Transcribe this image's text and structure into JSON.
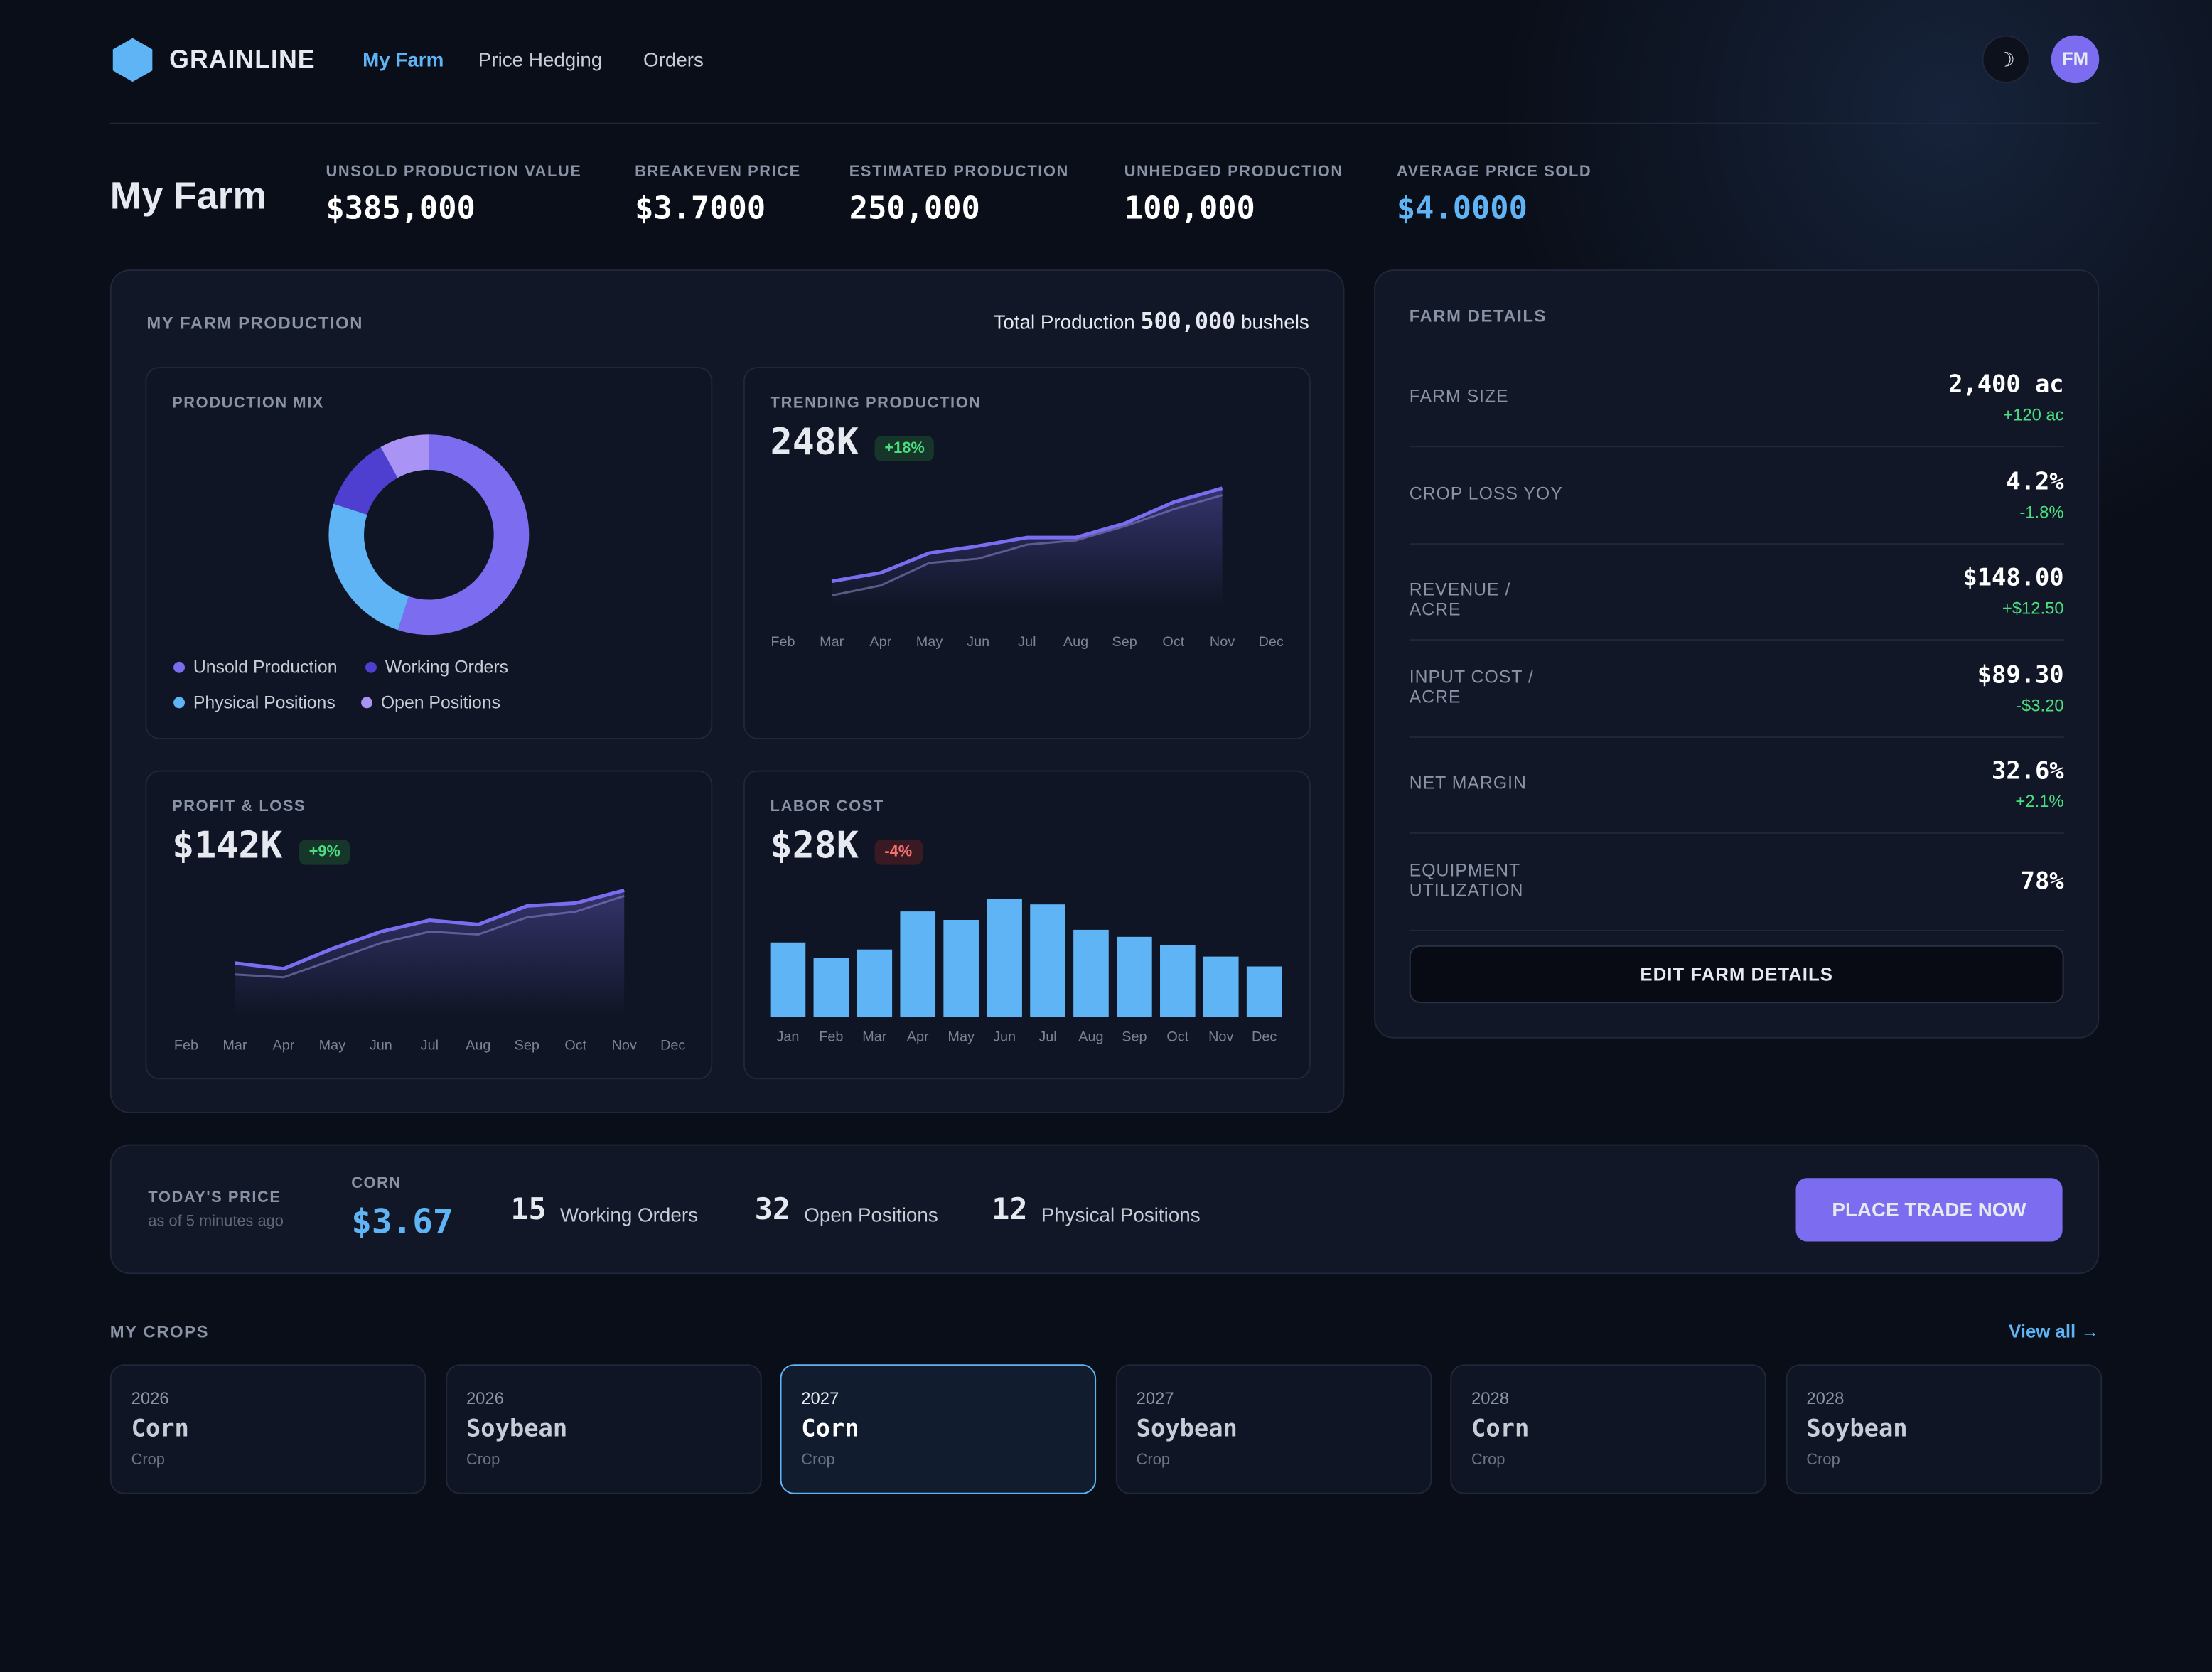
{
  "header": {
    "brand": "GRAINLINE",
    "nav": [
      "My Farm",
      "Price Hedging",
      "Orders"
    ],
    "active_nav": 0,
    "theme_icon": "☽",
    "avatar": "FM"
  },
  "summary": {
    "title": "My Farm",
    "stats": [
      {
        "label": "UNSOLD PRODUCTION VALUE",
        "value": "$385,000"
      },
      {
        "label": "BREAKEVEN PRICE",
        "value": "$3.7000"
      },
      {
        "label": "ESTIMATED PRODUCTION",
        "value": "250,000"
      },
      {
        "label": "UNHEDGED PRODUCTION",
        "value": "100,000"
      },
      {
        "label": "AVERAGE PRICE SOLD",
        "value": "$4.0000"
      }
    ]
  },
  "production": {
    "title": "MY FARM PRODUCTION",
    "total_label": "Total Production",
    "total_value": "500,000",
    "total_unit": "bushels"
  },
  "production_mix": {
    "type": "pie",
    "title": "PRODUCTION MIX",
    "categories": [
      "Unsold Production",
      "Working Orders",
      "Physical Positions",
      "Open Positions"
    ],
    "values": [
      55,
      12,
      25,
      8
    ],
    "colors": [
      "#7b6cf0",
      "#4f3fd0",
      "#5fb4f5",
      "#a994f5"
    ]
  },
  "trending": {
    "type": "line",
    "title": "TRENDING PRODUCTION",
    "value": "248K",
    "change": "+18%",
    "trend": "up",
    "categories": [
      "Feb",
      "Mar",
      "Apr",
      "May",
      "Jun",
      "Jul",
      "Aug",
      "Sep",
      "Oct",
      "Nov",
      "Dec"
    ],
    "series": [
      {
        "color": "#7b6cf0",
        "values": [
          null,
          19,
          25,
          39,
          44,
          50,
          50,
          60,
          75,
          85,
          null
        ]
      },
      {
        "color": "#5b5780",
        "values": [
          null,
          9,
          16,
          32,
          35,
          45,
          48,
          58,
          70,
          80,
          null
        ]
      }
    ]
  },
  "pnl": {
    "type": "line",
    "title": "PROFIT & LOSS",
    "value": "$142K",
    "change": "+9%",
    "trend": "up",
    "categories": [
      "Feb",
      "Mar",
      "Apr",
      "May",
      "Jun",
      "Jul",
      "Aug",
      "Sep",
      "Oct",
      "Nov",
      "Dec"
    ],
    "series": [
      {
        "color": "#7b6cf0",
        "values": [
          null,
          38,
          34,
          48,
          60,
          68,
          65,
          78,
          80,
          89,
          null
        ]
      },
      {
        "color": "#5b5780",
        "values": [
          null,
          30,
          28,
          40,
          52,
          60,
          58,
          70,
          74,
          85,
          null
        ]
      }
    ]
  },
  "labor": {
    "type": "bar",
    "title": "LABOR COST",
    "value": "$28K",
    "change": "-4%",
    "trend": "down",
    "categories": [
      "Jan",
      "Feb",
      "Mar",
      "Apr",
      "May",
      "Jun",
      "Jul",
      "Aug",
      "Sep",
      "Oct",
      "Nov",
      "Dec"
    ],
    "values": [
      53,
      42,
      48,
      75,
      69,
      84,
      80,
      62,
      57,
      51,
      43,
      36
    ],
    "color": "#5fb4f5"
  },
  "farm_details": {
    "title": "FARM DETAILS",
    "rows": [
      {
        "label": "FARM SIZE",
        "value": "2,400 ac",
        "change": "+120 ac"
      },
      {
        "label": "CROP LOSS YOY",
        "value": "4.2%",
        "change": "-1.8%"
      },
      {
        "label": "REVENUE / ACRE",
        "value": "$148.00",
        "change": "+$12.50"
      },
      {
        "label": "INPUT COST / ACRE",
        "value": "$89.30",
        "change": "-$3.20"
      },
      {
        "label": "NET MARGIN",
        "value": "32.6%",
        "change": "+2.1%"
      },
      {
        "label": "EQUIPMENT UTILIZATION",
        "value": "78%"
      }
    ],
    "button": "EDIT FARM DETAILS"
  },
  "price_bar": {
    "label": "TODAY'S PRICE",
    "as_of": "as of 5 minutes ago",
    "crop": "CORN",
    "price": "$3.67",
    "counts": [
      {
        "value": "15",
        "label": "Working Orders"
      },
      {
        "value": "32",
        "label": "Open Positions"
      },
      {
        "value": "12",
        "label": "Physical Positions"
      }
    ],
    "button": "PLACE TRADE NOW"
  },
  "crops": {
    "title": "MY CROPS",
    "view_all": "View all →",
    "selected": 2,
    "items": [
      {
        "year": "2026",
        "name": "Corn",
        "sub": "Crop"
      },
      {
        "year": "2026",
        "name": "Soybean",
        "sub": "Crop"
      },
      {
        "year": "2027",
        "name": "Corn",
        "sub": "Crop"
      },
      {
        "year": "2027",
        "name": "Soybean",
        "sub": "Crop"
      },
      {
        "year": "2028",
        "name": "Corn",
        "sub": "Crop"
      },
      {
        "year": "2028",
        "name": "Soybean",
        "sub": "Crop"
      }
    ]
  }
}
